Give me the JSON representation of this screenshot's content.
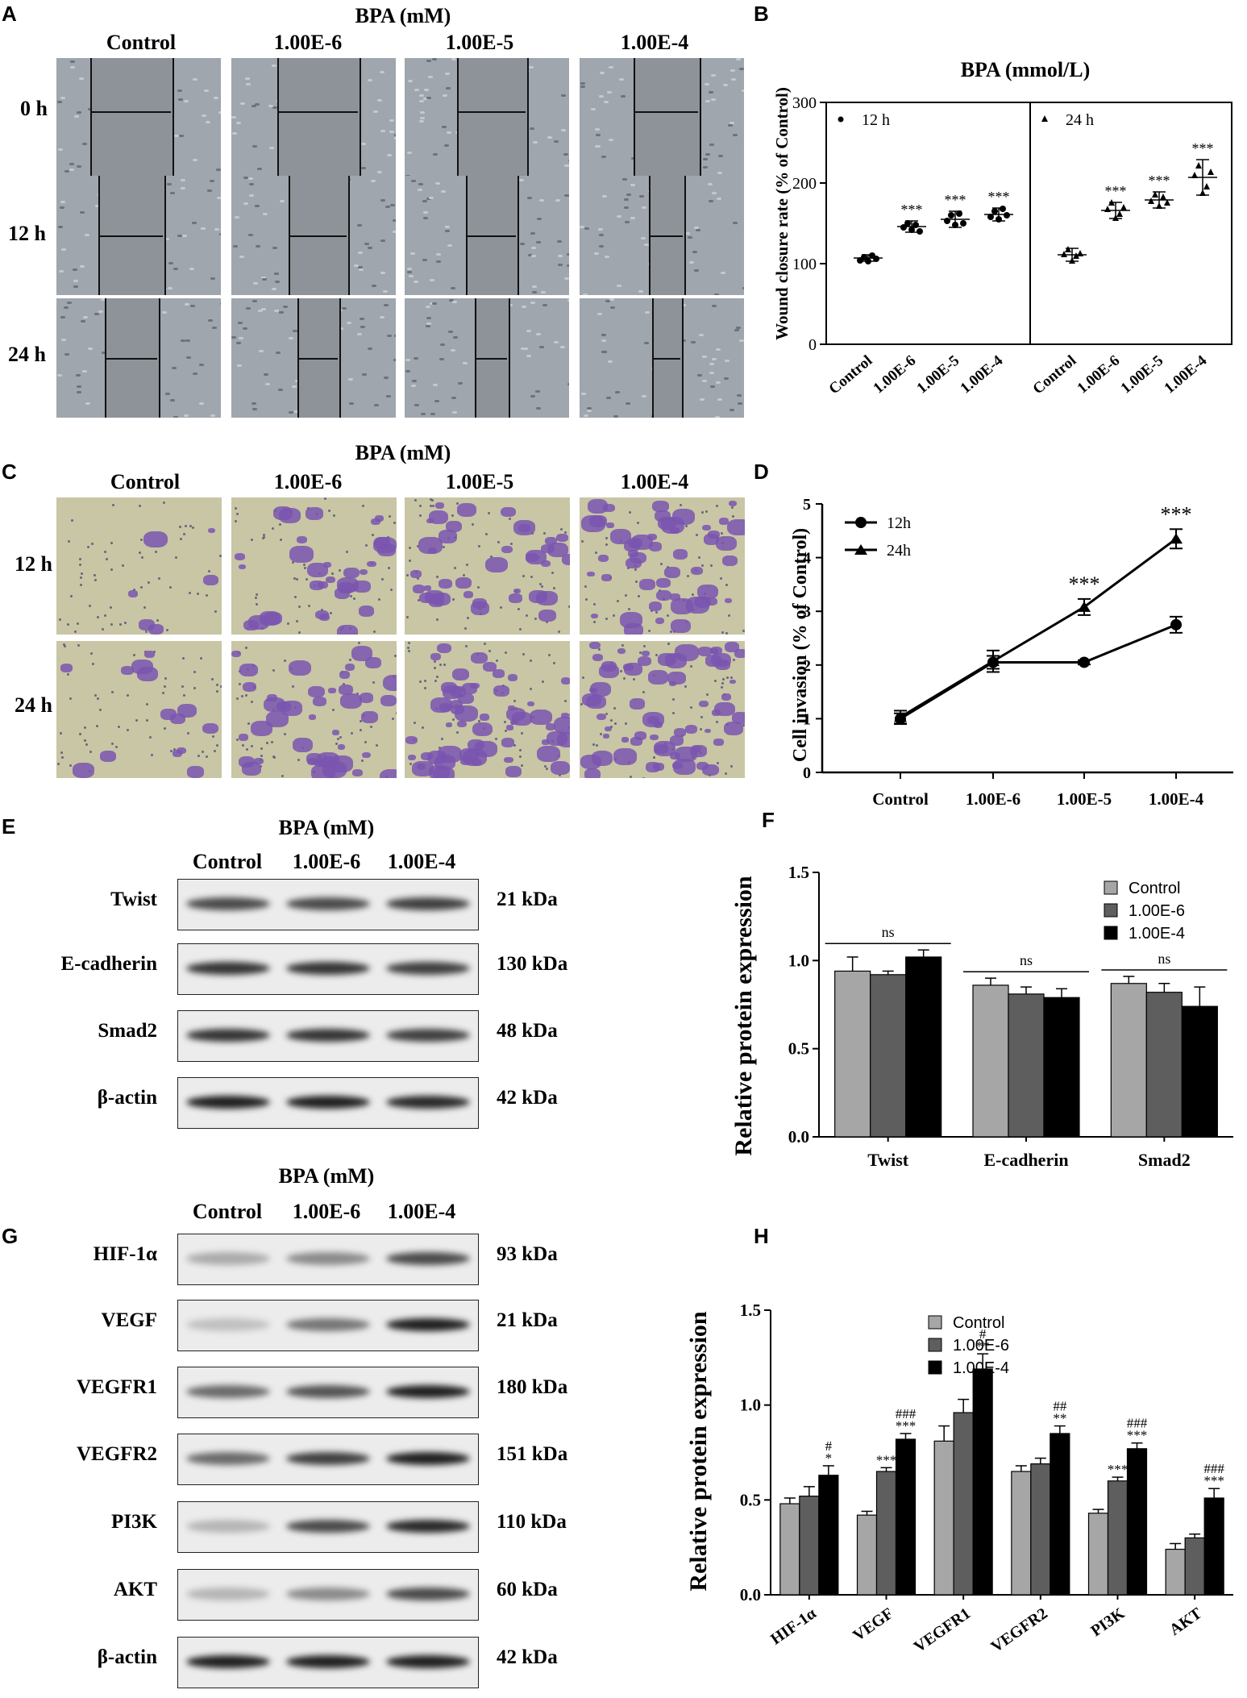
{
  "panel_letters": {
    "A": "A",
    "B": "B",
    "C": "C",
    "D": "D",
    "E": "E",
    "F": "F",
    "G": "G",
    "H": "H"
  },
  "panelA": {
    "title": "BPA (mM)",
    "columns": [
      "Control",
      "1.00E-6",
      "1.00E-5",
      "1.00E-4"
    ],
    "rows": [
      "0 h",
      "12 h",
      "24 h"
    ]
  },
  "panelC": {
    "title": "BPA (mM)",
    "columns": [
      "Control",
      "1.00E-6",
      "1.00E-5",
      "1.00E-4"
    ],
    "rows": [
      "12 h",
      "24 h"
    ]
  },
  "panelE": {
    "title": "BPA (mM)",
    "lanes": [
      "Control",
      "1.00E-6",
      "1.00E-4"
    ],
    "blots": [
      {
        "protein": "Twist",
        "size": "21 kDa"
      },
      {
        "protein": "E-cadherin",
        "size": "130 kDa"
      },
      {
        "protein": "Smad2",
        "size": "48 kDa"
      },
      {
        "protein": "β-actin",
        "size": "42 kDa"
      }
    ]
  },
  "panelG": {
    "title": "BPA (mM)",
    "lanes": [
      "Control",
      "1.00E-6",
      "1.00E-4"
    ],
    "blots": [
      {
        "protein": "HIF-1α",
        "size": "93 kDa"
      },
      {
        "protein": "VEGF",
        "size": "21 kDa"
      },
      {
        "protein": "VEGFR1",
        "size": "180 kDa"
      },
      {
        "protein": "VEGFR2",
        "size": "151 kDa"
      },
      {
        "protein": "PI3K",
        "size": "110 kDa"
      },
      {
        "protein": "AKT",
        "size": "60 kDa"
      },
      {
        "protein": "β-actin",
        "size": "42 kDa"
      }
    ]
  },
  "colors": {
    "control_bar": "#a6a6a6",
    "low_bar": "#5e5e5e",
    "high_bar": "#000000",
    "crystal_violet": "#7a55b0",
    "membrane": "#c8c6a4",
    "phase_contrast": "#9aa0a6"
  },
  "chart_data": [
    {
      "panel": "B",
      "type": "scatter",
      "title": "BPA (mmol/L)",
      "ylabel": "Wound closure rate (% of Control)",
      "ylim": [
        0,
        300
      ],
      "yticks": [
        0,
        100,
        200,
        300
      ],
      "categories": [
        "Control",
        "1.00E-6",
        "1.00E-5",
        "1.00E-4"
      ],
      "series": [
        {
          "name": "12 h",
          "mean": [
            107,
            146,
            155,
            161
          ],
          "sd": [
            4,
            7,
            10,
            8
          ],
          "points": [
            [
              104,
              108,
              103,
              110,
              106
            ],
            [
              145,
              150,
              142,
              148,
              140
            ],
            [
              153,
              160,
              148,
              162,
              150
            ],
            [
              158,
              165,
              155,
              168,
              160
            ]
          ],
          "significance": [
            "",
            "***",
            "***",
            "***"
          ]
        },
        {
          "name": "24 h",
          "mean": [
            111,
            166,
            179,
            207
          ],
          "sd": [
            8,
            10,
            10,
            22
          ],
          "points": [
            [
              112,
              118,
              104,
              110,
              113
            ],
            [
              168,
              176,
              157,
              162,
              170
            ],
            [
              178,
              186,
              172,
              183,
              176
            ],
            [
              210,
              222,
              188,
              196,
              214
            ]
          ],
          "significance": [
            "",
            "***",
            "***",
            "***"
          ]
        }
      ]
    },
    {
      "panel": "D",
      "type": "line",
      "ylabel": "Cell invasion (% of Control)",
      "ylim": [
        0,
        5
      ],
      "yticks": [
        0,
        1,
        2,
        3,
        4,
        5
      ],
      "categories": [
        "Control",
        "1.00E-6",
        "1.00E-5",
        "1.00E-4"
      ],
      "series": [
        {
          "name": "12h",
          "values": [
            1.0,
            2.05,
            2.05,
            2.75
          ],
          "err": [
            0.1,
            0.12,
            0.04,
            0.15
          ]
        },
        {
          "name": "24h",
          "values": [
            1.03,
            2.07,
            3.08,
            4.35
          ],
          "err": [
            0.12,
            0.2,
            0.15,
            0.18
          ]
        }
      ],
      "significance": [
        "",
        "",
        "***",
        "***"
      ]
    },
    {
      "panel": "F",
      "type": "bar",
      "ylabel": "Relative protein expression",
      "ylim": [
        0,
        1.5
      ],
      "yticks": [
        "0.0",
        "0.5",
        "1.0",
        "1.5"
      ],
      "categories": [
        "Twist",
        "E-cadherin",
        "Smad2"
      ],
      "series": [
        {
          "name": "Control",
          "values": [
            0.94,
            0.86,
            0.87
          ],
          "err": [
            0.08,
            0.04,
            0.04
          ]
        },
        {
          "name": "1.00E-6",
          "values": [
            0.92,
            0.81,
            0.82
          ],
          "err": [
            0.02,
            0.04,
            0.05
          ]
        },
        {
          "name": "1.00E-4",
          "values": [
            1.02,
            0.79,
            0.74
          ],
          "err": [
            0.04,
            0.05,
            0.11
          ]
        }
      ],
      "group_annotation": [
        "ns",
        "ns",
        "ns"
      ]
    },
    {
      "panel": "H",
      "type": "bar",
      "ylabel": "Relative protein expression",
      "ylim": [
        0,
        1.5
      ],
      "yticks": [
        "0.0",
        "0.5",
        "1.0",
        "1.5"
      ],
      "categories": [
        "HIF-1α",
        "VEGF",
        "VEGFR1",
        "VEGFR2",
        "PI3K",
        "AKT"
      ],
      "series": [
        {
          "name": "Control",
          "values": [
            0.48,
            0.42,
            0.81,
            0.65,
            0.43,
            0.24
          ],
          "err": [
            0.03,
            0.02,
            0.08,
            0.03,
            0.02,
            0.03
          ]
        },
        {
          "name": "1.00E-6",
          "values": [
            0.52,
            0.65,
            0.96,
            0.69,
            0.6,
            0.3
          ],
          "err": [
            0.05,
            0.02,
            0.07,
            0.03,
            0.02,
            0.02
          ]
        },
        {
          "name": "1.00E-4",
          "values": [
            0.63,
            0.82,
            1.19,
            0.85,
            0.77,
            0.51
          ],
          "err": [
            0.05,
            0.03,
            0.08,
            0.04,
            0.03,
            0.05
          ]
        }
      ],
      "annotations": [
        {
          "category": "HIF-1α",
          "series": "1.00E-6",
          "text": [
            ""
          ]
        },
        {
          "category": "HIF-1α",
          "series": "1.00E-4",
          "text": [
            "#",
            "*"
          ]
        },
        {
          "category": "VEGF",
          "series": "1.00E-6",
          "text": [
            "***"
          ]
        },
        {
          "category": "VEGF",
          "series": "1.00E-4",
          "text": [
            "###",
            "***"
          ]
        },
        {
          "category": "VEGFR1",
          "series": "1.00E-4",
          "text": [
            "#",
            "**"
          ]
        },
        {
          "category": "VEGFR2",
          "series": "1.00E-4",
          "text": [
            "##",
            "**"
          ]
        },
        {
          "category": "PI3K",
          "series": "1.00E-6",
          "text": [
            "***"
          ]
        },
        {
          "category": "PI3K",
          "series": "1.00E-4",
          "text": [
            "###",
            "***"
          ]
        },
        {
          "category": "AKT",
          "series": "1.00E-4",
          "text": [
            "###",
            "***"
          ]
        }
      ]
    }
  ]
}
